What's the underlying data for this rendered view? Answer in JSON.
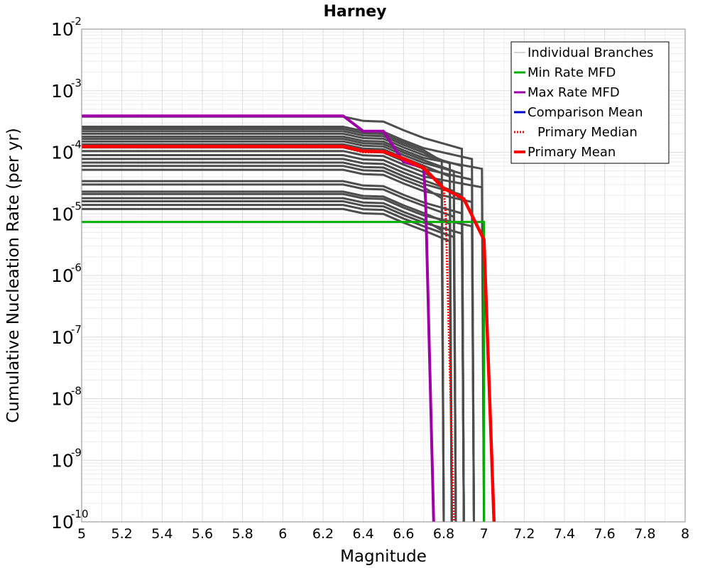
{
  "chart_data": {
    "type": "line",
    "title": "Harney",
    "xlabel": "Magnitude",
    "ylabel": "Cumulative Nucleation Rate (per yr)",
    "xlim": [
      5,
      8
    ],
    "ylim": [
      1e-10,
      0.01
    ],
    "yscale": "log",
    "grid": true,
    "legend_position": "top-right",
    "x_ticks": [
      "5",
      "5.2",
      "5.4",
      "5.6",
      "5.8",
      "6",
      "6.2",
      "6.4",
      "6.6",
      "6.8",
      "7",
      "7.2",
      "7.4",
      "7.6",
      "7.8",
      "8"
    ],
    "y_ticks": [
      {
        "base": "10",
        "exp": "-2",
        "value": 0.01
      },
      {
        "base": "10",
        "exp": "-3",
        "value": 0.001
      },
      {
        "base": "10",
        "exp": "-4",
        "value": 0.0001
      },
      {
        "base": "10",
        "exp": "-5",
        "value": 1e-05
      },
      {
        "base": "10",
        "exp": "-6",
        "value": 1e-06
      },
      {
        "base": "10",
        "exp": "-7",
        "value": 1e-07
      },
      {
        "base": "10",
        "exp": "-8",
        "value": 1e-08
      },
      {
        "base": "10",
        "exp": "-9",
        "value": 1e-09
      },
      {
        "base": "10",
        "exp": "-10",
        "value": 1e-10
      }
    ],
    "legend": [
      {
        "label": "Individual Branches",
        "color": "#aaaaaa",
        "style": "thin"
      },
      {
        "label": "Min Rate MFD",
        "color": "#00b000",
        "style": "solid"
      },
      {
        "label": "Max Rate MFD",
        "color": "#a000a8",
        "style": "solid"
      },
      {
        "label": "Comparison Mean",
        "color": "#0000d0",
        "style": "solid"
      },
      {
        "label": "Primary Median",
        "color": "#ff0000",
        "style": "dotted"
      },
      {
        "label": "Primary Mean",
        "color": "#ff0000",
        "style": "thick"
      }
    ],
    "branch_color": "#4d4d4d",
    "branch_thin_color": "#8c8c8c",
    "series": [
      {
        "name": "Min Rate MFD",
        "color": "#00b000",
        "x": [
          5.0,
          7.0,
          7.0
        ],
        "y": [
          7.4e-06,
          7.4e-06,
          1e-10
        ]
      },
      {
        "name": "Max Rate MFD",
        "color": "#a000a8",
        "x": [
          5.0,
          6.3,
          6.4,
          6.5,
          6.6,
          6.7,
          6.71,
          6.75
        ],
        "y": [
          0.00039,
          0.00039,
          0.00022,
          0.00022,
          7e-05,
          5.6e-05,
          1.6e-05,
          1e-10
        ]
      },
      {
        "name": "Primary Mean",
        "color": "#ff0000",
        "x": [
          5.0,
          6.3,
          6.4,
          6.5,
          6.6,
          6.7,
          6.8,
          6.9,
          7.0,
          7.05
        ],
        "y": [
          0.000125,
          0.000125,
          0.000105,
          0.000103,
          7.9e-05,
          5.6e-05,
          2.6e-05,
          1.75e-05,
          3.8e-06,
          1e-10
        ]
      },
      {
        "name": "Primary Median",
        "color": "#ff0000",
        "x": [
          5.0,
          6.3,
          6.4,
          6.5,
          6.6,
          6.7,
          6.8,
          6.81,
          6.85
        ],
        "y": [
          0.00012,
          0.00012,
          0.0001,
          0.0001,
          7.5e-05,
          5.3e-05,
          2.5e-05,
          1e-05,
          1e-10
        ]
      }
    ],
    "branch_levels": [
      0.00038,
      0.00026,
      0.00024,
      0.00022,
      0.0002,
      0.00018,
      0.000165,
      0.00015,
      0.000135,
      0.00012,
      0.000105,
      9e-05,
      7.8e-05,
      6.8e-05,
      6e-05,
      5.2e-05,
      3.4e-05,
      3e-05,
      2.3e-05,
      2.1e-05,
      1.8e-05,
      1.6e-05,
      1.4e-05,
      1.2e-05
    ],
    "branch_drop_magnitudes": [
      6.9,
      6.95,
      6.8,
      6.84,
      6.9,
      7.0,
      6.86,
      6.9,
      6.84,
      6.95,
      6.8,
      7.0,
      6.86,
      6.9,
      6.8,
      6.95,
      6.9,
      6.86,
      6.84,
      6.95,
      6.8,
      6.9,
      6.86,
      6.84
    ]
  }
}
